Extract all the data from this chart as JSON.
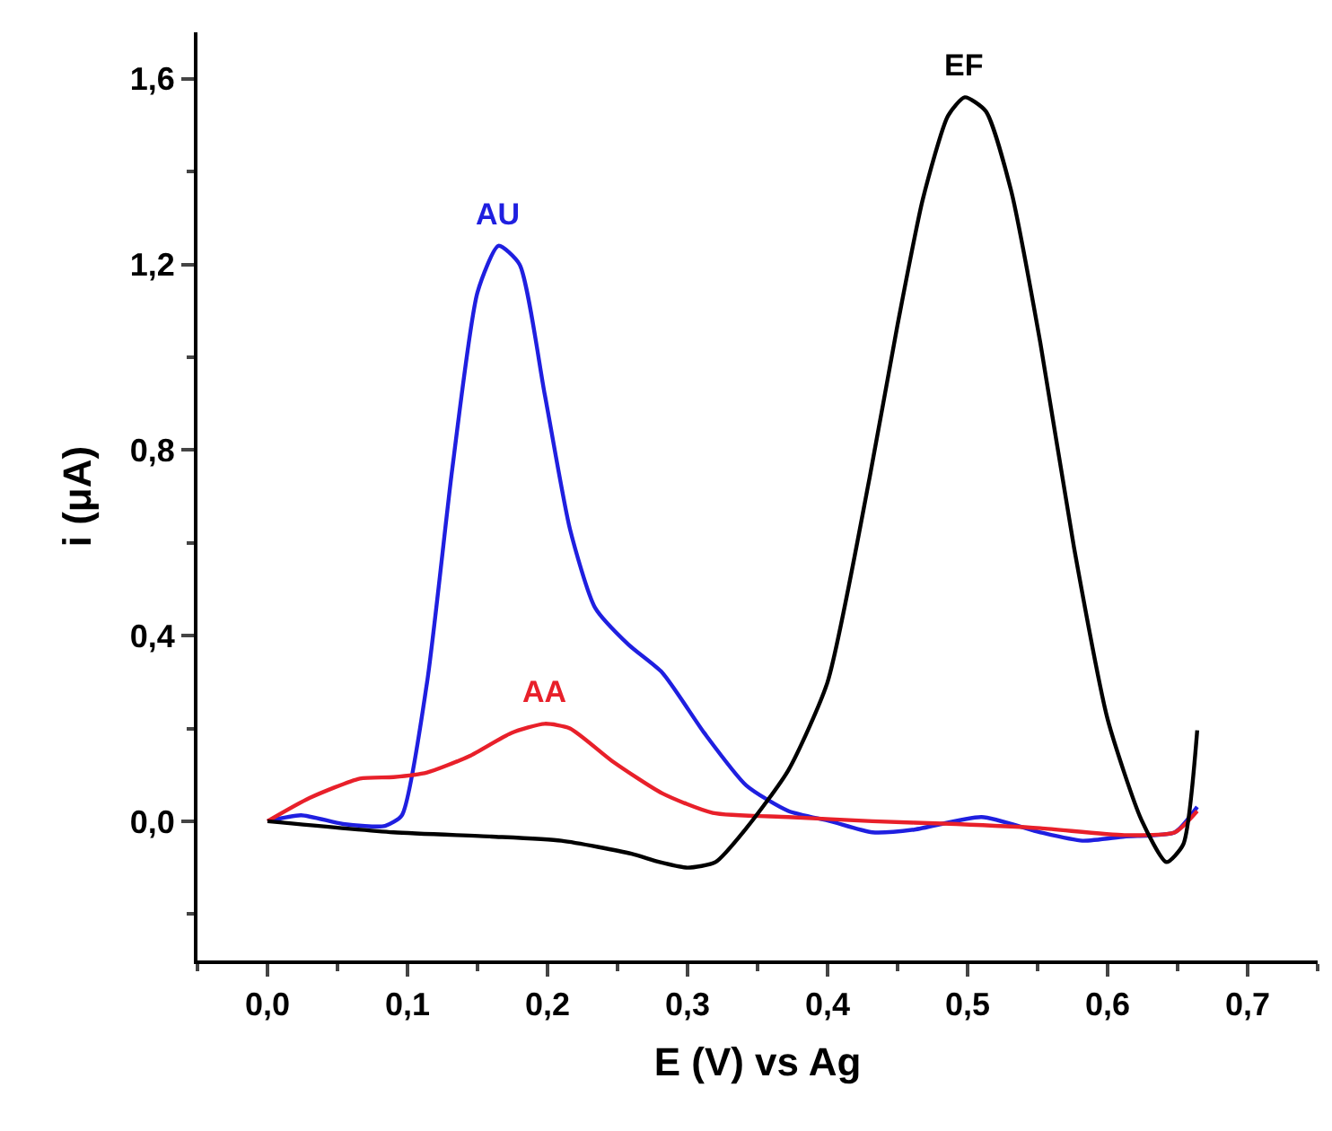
{
  "chart_data": {
    "type": "line",
    "xlabel": "E (V) vs Ag",
    "ylabel": "i (μA)",
    "xlim": [
      -0.05,
      0.75
    ],
    "ylim": [
      -0.3,
      1.7
    ],
    "xticks": [
      {
        "value": 0.0,
        "label": "0,0"
      },
      {
        "value": 0.1,
        "label": "0,1"
      },
      {
        "value": 0.2,
        "label": "0,2"
      },
      {
        "value": 0.3,
        "label": "0,3"
      },
      {
        "value": 0.4,
        "label": "0,4"
      },
      {
        "value": 0.5,
        "label": "0,5"
      },
      {
        "value": 0.6,
        "label": "0,6"
      },
      {
        "value": 0.7,
        "label": "0,7"
      }
    ],
    "yticks": [
      {
        "value": 0.0,
        "label": "0,0"
      },
      {
        "value": 0.4,
        "label": "0,4"
      },
      {
        "value": 0.8,
        "label": "0,8"
      },
      {
        "value": 1.2,
        "label": "1,2"
      },
      {
        "value": 1.6,
        "label": "1,6"
      }
    ],
    "legend": false,
    "marker": "none",
    "line_style": "solid",
    "series": [
      {
        "name": "AU",
        "color": "#1f1fe0",
        "x": [
          0,
          0.024,
          0.054,
          0.084,
          0.096,
          0.114,
          0.132,
          0.15,
          0.165,
          0.18,
          0.198,
          0.216,
          0.234,
          0.258,
          0.282,
          0.312,
          0.342,
          0.372,
          0.402,
          0.432,
          0.462,
          0.51,
          0.552,
          0.582,
          0.612,
          0.648,
          0.664
        ],
        "values": [
          0,
          0.013,
          -0.006,
          -0.01,
          0.013,
          0.3,
          0.76,
          1.14,
          1.24,
          1.2,
          0.92,
          0.63,
          0.46,
          0.38,
          0.32,
          0.19,
          0.077,
          0.022,
          0,
          -0.024,
          -0.018,
          0.009,
          -0.024,
          -0.042,
          -0.033,
          -0.024,
          0.031
        ]
      },
      {
        "name": "AA",
        "color": "#e8202a",
        "x": [
          0,
          0.03,
          0.066,
          0.09,
          0.114,
          0.144,
          0.174,
          0.198,
          0.216,
          0.246,
          0.282,
          0.318,
          0.372,
          0.432,
          0.492,
          0.552,
          0.612,
          0.648,
          0.664
        ],
        "values": [
          0,
          0.05,
          0.092,
          0.095,
          0.105,
          0.14,
          0.19,
          0.21,
          0.2,
          0.13,
          0.06,
          0.018,
          0.009,
          0,
          -0.006,
          -0.015,
          -0.03,
          -0.024,
          0.022
        ]
      },
      {
        "name": "EF",
        "color": "#000000",
        "x": [
          0,
          0.09,
          0.16,
          0.21,
          0.26,
          0.28,
          0.3,
          0.32,
          0.342,
          0.372,
          0.4,
          0.43,
          0.45,
          0.468,
          0.486,
          0.498,
          0.513,
          0.531,
          0.552,
          0.576,
          0.6,
          0.624,
          0.642,
          0.654,
          0.664
        ],
        "values": [
          0,
          -0.024,
          -0.033,
          -0.042,
          -0.07,
          -0.088,
          -0.1,
          -0.088,
          -0.015,
          0.11,
          0.3,
          0.74,
          1.07,
          1.34,
          1.52,
          1.56,
          1.53,
          1.36,
          1.03,
          0.59,
          0.22,
          0.004,
          -0.088,
          -0.05,
          0.196
        ]
      }
    ]
  }
}
